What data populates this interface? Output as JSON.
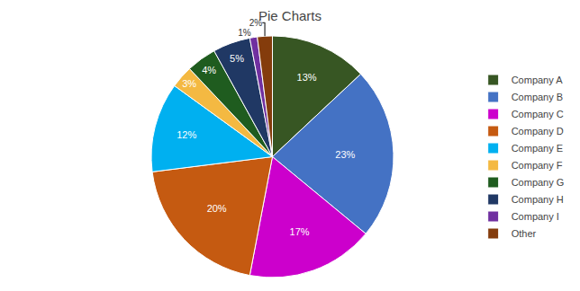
{
  "chart_data": {
    "type": "pie",
    "title": "Pie Charts",
    "categories": [
      "Company A",
      "Company B",
      "Company C",
      "Company D",
      "Company E",
      "Company F",
      "Company G",
      "Company H",
      "Company I",
      "Other"
    ],
    "values": [
      13,
      23,
      17,
      20,
      12,
      3,
      4,
      5,
      1,
      2
    ],
    "value_labels": [
      "13%",
      "23%",
      "17%",
      "20%",
      "12%",
      "3%",
      "4%",
      "5%",
      "1%",
      "2%"
    ],
    "colors": [
      "#375623",
      "#4472C4",
      "#CC00CC",
      "#C55A11",
      "#00B0F0",
      "#F4B942",
      "#1F5C1F",
      "#203864",
      "#7030A0",
      "#843C0C"
    ],
    "data_labels": true,
    "legend": "right"
  }
}
